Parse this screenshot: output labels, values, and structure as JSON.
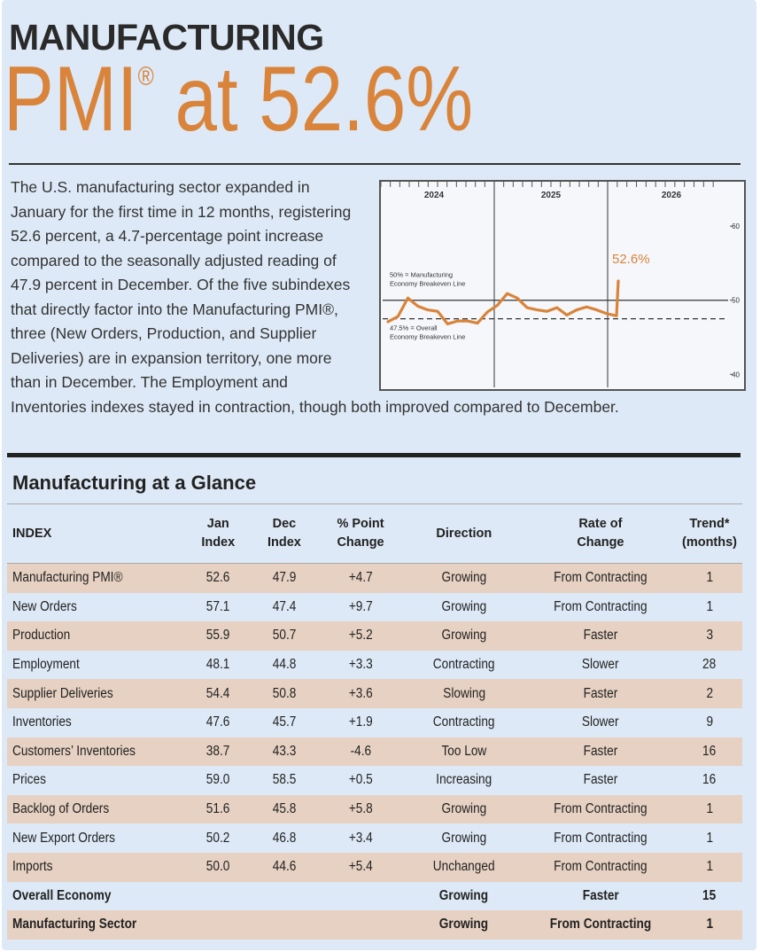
{
  "header": {
    "line1": "MANUFACTURING",
    "line2_main": "PMI",
    "line2_mark": "®",
    "line2_rest": " at 52.6%"
  },
  "body_text": "The U.S. manufacturing sector expanded in January for the first time in 12 months, registering 52.6 percent, a 4.7-percentage point increase compared to the seasonally adjusted reading of 47.9 percent in December. Of the five subindexes that directly factor into the Manufacturing PMI®, three (New Orders, Production, and Supplier Deliveries) are in expansion territory, one more than in December. The Employment and Inventories indexes stayed in contraction, though both improved compared to December.",
  "chart_data": {
    "type": "line",
    "x_labels": [
      "2024",
      "2025",
      "2026"
    ],
    "y_ticks": [
      "60",
      "50",
      "40"
    ],
    "ylim": [
      38,
      66
    ],
    "reference_lines": [
      {
        "label": "50% = Manufacturing Economy Breakeven Line",
        "value": 50,
        "style": "solid"
      },
      {
        "label": "47.5% = Overall Economy Breakeven Line",
        "value": 47.5,
        "style": "dashed"
      }
    ],
    "last_value_label": "52.6%",
    "series_color": "#d9843a",
    "series": [
      {
        "values": [
          47.1,
          47.8,
          50.3,
          49.2,
          48.7,
          48.5,
          46.8,
          47.2,
          47.2,
          46.9,
          48.4,
          49.3,
          50.9,
          50.3,
          49.0,
          48.7,
          48.5,
          49.0,
          48.0,
          48.7,
          49.1,
          48.7,
          48.2,
          47.9,
          52.6
        ]
      }
    ]
  },
  "glance": {
    "title": "Manufacturing at a Glance",
    "headers": {
      "index": "INDEX",
      "jan_1": "Jan",
      "jan_2": "Index",
      "dec_1": "Dec",
      "dec_2": "Index",
      "pct_1": "% Point",
      "pct_2": "Change",
      "direction": "Direction",
      "rate_1": "Rate of",
      "rate_2": "Change",
      "trend_1": "Trend*",
      "trend_2": "(months)"
    },
    "rows": [
      {
        "name": "Manufacturing PMI®",
        "jan": "52.6",
        "dec": "47.9",
        "change": "+4.7",
        "direction": "Growing",
        "rate": "From Contracting",
        "trend": "1"
      },
      {
        "name": "New Orders",
        "jan": "57.1",
        "dec": "47.4",
        "change": "+9.7",
        "direction": "Growing",
        "rate": "From Contracting",
        "trend": "1"
      },
      {
        "name": "Production",
        "jan": "55.9",
        "dec": "50.7",
        "change": "+5.2",
        "direction": "Growing",
        "rate": "Faster",
        "trend": "3"
      },
      {
        "name": "Employment",
        "jan": "48.1",
        "dec": "44.8",
        "change": "+3.3",
        "direction": "Contracting",
        "rate": "Slower",
        "trend": "28"
      },
      {
        "name": "Supplier Deliveries",
        "jan": "54.4",
        "dec": "50.8",
        "change": "+3.6",
        "direction": "Slowing",
        "rate": "Faster",
        "trend": "2"
      },
      {
        "name": "Inventories",
        "jan": "47.6",
        "dec": "45.7",
        "change": "+1.9",
        "direction": "Contracting",
        "rate": "Slower",
        "trend": "9"
      },
      {
        "name": "Customers’ Inventories",
        "jan": "38.7",
        "dec": "43.3",
        "change": "-4.6",
        "direction": "Too Low",
        "rate": "Faster",
        "trend": "16"
      },
      {
        "name": "Prices",
        "jan": "59.0",
        "dec": "58.5",
        "change": "+0.5",
        "direction": "Increasing",
        "rate": "Faster",
        "trend": "16"
      },
      {
        "name": "Backlog of Orders",
        "jan": "51.6",
        "dec": "45.8",
        "change": "+5.8",
        "direction": "Growing",
        "rate": "From Contracting",
        "trend": "1"
      },
      {
        "name": "New Export Orders",
        "jan": "50.2",
        "dec": "46.8",
        "change": "+3.4",
        "direction": "Growing",
        "rate": "From Contracting",
        "trend": "1"
      },
      {
        "name": "Imports",
        "jan": "50.0",
        "dec": "44.6",
        "change": "+5.4",
        "direction": "Unchanged",
        "rate": "From Contracting",
        "trend": "1"
      },
      {
        "name": "Overall Economy",
        "jan": "",
        "dec": "",
        "change": "",
        "direction": "Growing",
        "rate": "Faster",
        "trend": "15"
      },
      {
        "name": "Manufacturing Sector",
        "jan": "",
        "dec": "",
        "change": "",
        "direction": "Growing",
        "rate": "From Contracting",
        "trend": "1"
      }
    ]
  }
}
